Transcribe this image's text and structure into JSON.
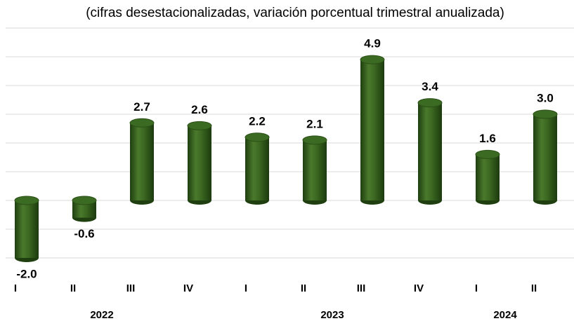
{
  "chart_data": {
    "type": "bar",
    "title": "(cifras desestacionalizadas, variación porcentual trimestral anualizada)",
    "categories": [
      "I",
      "II",
      "III",
      "IV",
      "I",
      "II",
      "III",
      "IV",
      "I",
      "II"
    ],
    "x_groups": [
      "2022",
      "2022",
      "2022",
      "2022",
      "2023",
      "2023",
      "2023",
      "2023",
      "2024",
      "2024"
    ],
    "values": [
      -2.0,
      -0.6,
      2.7,
      2.6,
      2.2,
      2.1,
      4.9,
      3.4,
      1.6,
      3.0
    ],
    "value_labels": [
      "-2.0",
      "-0.6",
      "2.7",
      "2.6",
      "2.2",
      "2.1",
      "4.9",
      "3.4",
      "1.6",
      "3.0"
    ],
    "color": "#3b6b22",
    "ylim": [
      -2,
      6
    ],
    "yticks": [
      -2,
      -1,
      0,
      1,
      2,
      3,
      4,
      5,
      6
    ],
    "grid": true
  }
}
